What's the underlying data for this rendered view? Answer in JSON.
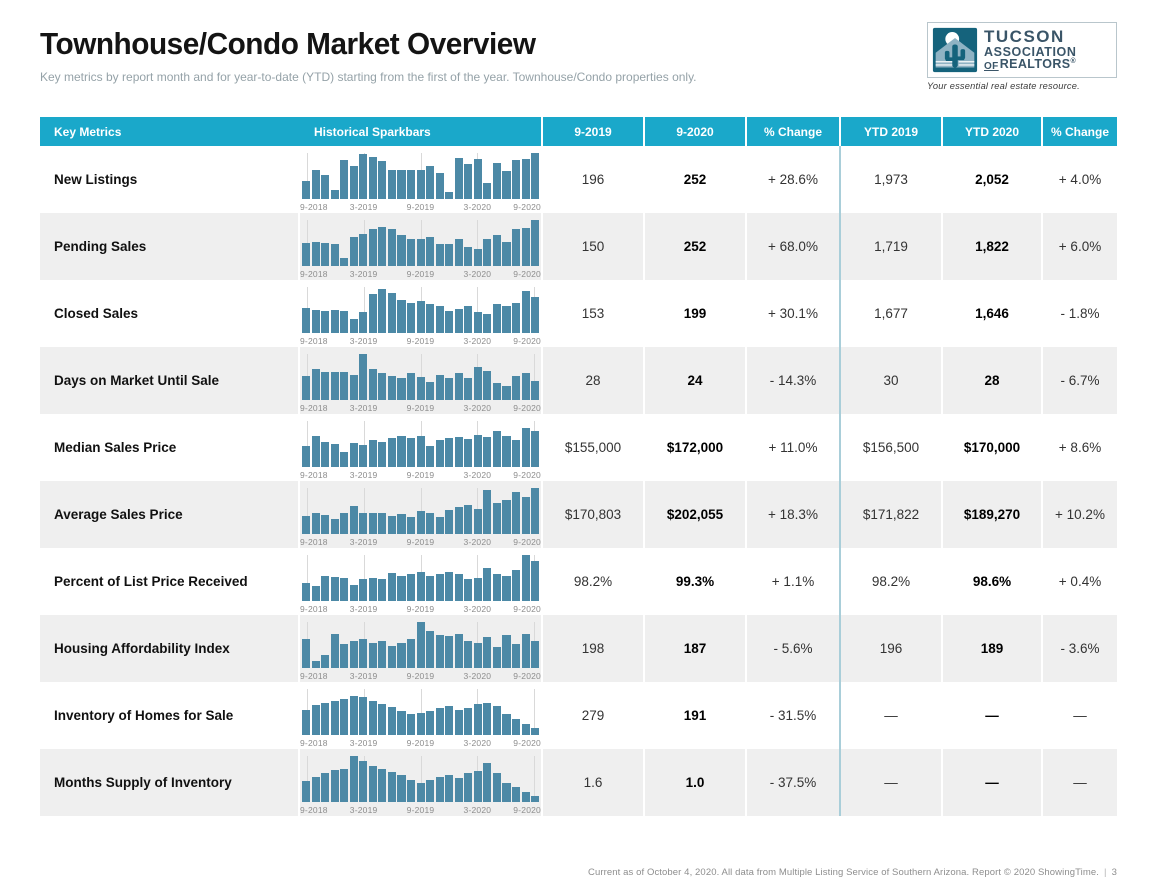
{
  "page": {
    "title": "Townhouse/Condo Market Overview",
    "subtitle": "Key metrics by report month and for year-to-date (YTD) starting from the first of the year. Townhouse/Condo properties only.",
    "footer": "Current as of October 4, 2020. All data from Multiple Listing Service of Southern Arizona. Report © 2020 ShowingTime.",
    "footer_separator": "|",
    "page_number": "3"
  },
  "logo": {
    "org_line1": "TUCSON",
    "org_line2": "ASSOCIATION",
    "of": "OF",
    "realtors": "REALTORS",
    "registered": "®",
    "tagline": "Your essential real estate resource.",
    "icon": "house-cactus-icon"
  },
  "colors": {
    "header_bg": "#1aa8ca",
    "bar": "#4c89a6",
    "alt_row": "#efefef",
    "divider": "#a9ced9",
    "logo_teal": "#15637c",
    "logo_house": "#8fb3c4"
  },
  "table": {
    "columns": [
      "Key Metrics",
      "Historical Sparkbars",
      "9-2019",
      "9-2020",
      "% Change",
      "YTD 2019",
      "YTD 2020",
      "% Change"
    ],
    "sparkbar_ticks": [
      "9-2018",
      "3-2019",
      "9-2019",
      "3-2020",
      "9-2020"
    ],
    "rows": [
      {
        "metric": "New Listings",
        "m2019": "196",
        "m2020": "252",
        "change": "+ 28.6%",
        "ytd2019": "1,973",
        "ytd2020": "2,052",
        "ytd_change": "+ 4.0%",
        "sparkbar": [
          40,
          63,
          53,
          20,
          85,
          72,
          97,
          92,
          82,
          63,
          63,
          63,
          63,
          71,
          56,
          15,
          89,
          76,
          87,
          35,
          78,
          60,
          84,
          87,
          100
        ]
      },
      {
        "metric": "Pending Sales",
        "m2019": "150",
        "m2020": "252",
        "change": "+ 68.0%",
        "ytd2019": "1,719",
        "ytd2020": "1,822",
        "ytd_change": "+ 6.0%",
        "sparkbar": [
          50,
          52,
          50,
          48,
          18,
          62,
          70,
          80,
          85,
          80,
          68,
          58,
          58,
          63,
          47,
          47,
          58,
          42,
          38,
          58,
          68,
          52,
          80,
          83,
          100
        ]
      },
      {
        "metric": "Closed Sales",
        "m2019": "153",
        "m2020": "199",
        "change": "+ 30.1%",
        "ytd2019": "1,677",
        "ytd2020": "1,646",
        "ytd_change": "- 1.8%",
        "sparkbar": [
          55,
          50,
          48,
          50,
          47,
          30,
          46,
          85,
          95,
          88,
          72,
          65,
          70,
          64,
          58,
          48,
          52,
          58,
          45,
          42,
          62,
          58,
          65,
          92,
          78
        ]
      },
      {
        "metric": "Days on Market Until Sale",
        "m2019": "28",
        "m2020": "24",
        "change": "- 14.3%",
        "ytd2019": "30",
        "ytd2020": "28",
        "ytd_change": "- 6.7%",
        "sparkbar": [
          52,
          68,
          60,
          60,
          60,
          55,
          100,
          68,
          58,
          52,
          48,
          58,
          50,
          40,
          55,
          48,
          58,
          48,
          72,
          62,
          38,
          30,
          52,
          58,
          42
        ]
      },
      {
        "metric": "Median Sales Price",
        "m2019": "$155,000",
        "m2020": "$172,000",
        "change": "+ 11.0%",
        "ytd2019": "$156,500",
        "ytd2020": "$170,000",
        "ytd_change": "+ 8.6%",
        "sparkbar": [
          45,
          68,
          55,
          50,
          32,
          52,
          48,
          58,
          55,
          62,
          68,
          62,
          68,
          45,
          58,
          62,
          65,
          60,
          70,
          65,
          78,
          68,
          58,
          85,
          78
        ]
      },
      {
        "metric": "Average Sales Price",
        "m2019": "$170,803",
        "m2020": "$202,055",
        "change": "+ 18.3%",
        "ytd2019": "$171,822",
        "ytd2020": "$189,270",
        "ytd_change": "+ 10.2%",
        "sparkbar": [
          40,
          45,
          42,
          32,
          45,
          60,
          45,
          45,
          45,
          40,
          44,
          36,
          50,
          45,
          38,
          52,
          58,
          62,
          55,
          95,
          68,
          75,
          92,
          80,
          100
        ]
      },
      {
        "metric": "Percent of List Price Received",
        "m2019": "98.2%",
        "m2020": "99.3%",
        "change": "+ 1.1%",
        "ytd2019": "98.2%",
        "ytd2020": "98.6%",
        "ytd_change": "+ 0.4%",
        "sparkbar": [
          40,
          32,
          55,
          52,
          50,
          35,
          48,
          50,
          48,
          60,
          55,
          58,
          62,
          55,
          58,
          62,
          58,
          48,
          50,
          72,
          58,
          55,
          68,
          100,
          88
        ]
      },
      {
        "metric": "Housing Affordability Index",
        "m2019": "198",
        "m2020": "187",
        "change": "- 5.6%",
        "ytd2019": "196",
        "ytd2020": "189",
        "ytd_change": "- 3.6%",
        "sparkbar": [
          62,
          15,
          28,
          75,
          52,
          58,
          62,
          55,
          58,
          48,
          55,
          62,
          100,
          80,
          72,
          70,
          75,
          58,
          55,
          68,
          45,
          72,
          52,
          75,
          58
        ]
      },
      {
        "metric": "Inventory of Homes for Sale",
        "m2019": "279",
        "m2020": "191",
        "change": "- 31.5%",
        "ytd2019": "—",
        "ytd2020": "—",
        "ytd_change": "—",
        "sparkbar": [
          55,
          65,
          70,
          75,
          78,
          85,
          82,
          75,
          68,
          60,
          52,
          45,
          48,
          52,
          58,
          62,
          55,
          58,
          68,
          70,
          62,
          45,
          35,
          25,
          15
        ]
      },
      {
        "metric": "Months Supply of Inventory",
        "m2019": "1.6",
        "m2020": "1.0",
        "change": "- 37.5%",
        "ytd2019": "—",
        "ytd2020": "—",
        "ytd_change": "—",
        "sparkbar": [
          45,
          55,
          62,
          70,
          72,
          100,
          90,
          78,
          72,
          65,
          58,
          48,
          42,
          48,
          55,
          58,
          52,
          62,
          68,
          85,
          62,
          42,
          32,
          22,
          12
        ]
      }
    ]
  }
}
